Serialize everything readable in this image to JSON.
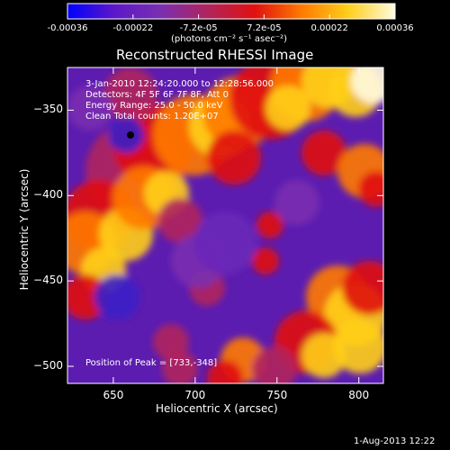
{
  "colorbar": {
    "tick_labels": [
      "-0.00036",
      "-0.00022",
      "-7.2e-05",
      "7.2e-05",
      "0.00022",
      "0.00036"
    ],
    "unit_label": "(photons cm⁻² s⁻¹ asec⁻²)",
    "range": [
      -0.00036,
      0.00036
    ],
    "colormap": [
      "#0000ff",
      "#5c18c8",
      "#7a2fb0",
      "#b0245c",
      "#e01010",
      "#ff7a00",
      "#ffcf1a",
      "#fffbe0"
    ]
  },
  "chart_data": {
    "type": "heatmap",
    "title": "Reconstructed RHESSI Image",
    "xlabel": "Heliocentric X (arcsec)",
    "ylabel": "Heliocentric Y (arcsec)",
    "xlim": [
      622,
      815
    ],
    "ylim": [
      -510,
      -325
    ],
    "x_ticks": [
      650,
      700,
      750,
      800
    ],
    "y_ticks": [
      -350,
      -400,
      -450,
      -500
    ],
    "x_tick_labels": [
      "650",
      "700",
      "750",
      "800"
    ],
    "y_tick_labels": [
      "−350",
      "−400",
      "−450",
      "−500"
    ],
    "peak_position": [
      733,
      -348
    ],
    "annotations": [
      "3-Jan-2010 12:24:20.000 to 12:28:56.000",
      "Detectors: 4F 5F 6F 7F 8F, Att 0",
      "Energy Range: 25.0 - 50.0 keV",
      "Clean     Total counts: 1.20E+07",
      "Position of Peak = [733,-348]"
    ]
  },
  "footer": {
    "timestamp": "1-Aug-2013 12:22"
  }
}
